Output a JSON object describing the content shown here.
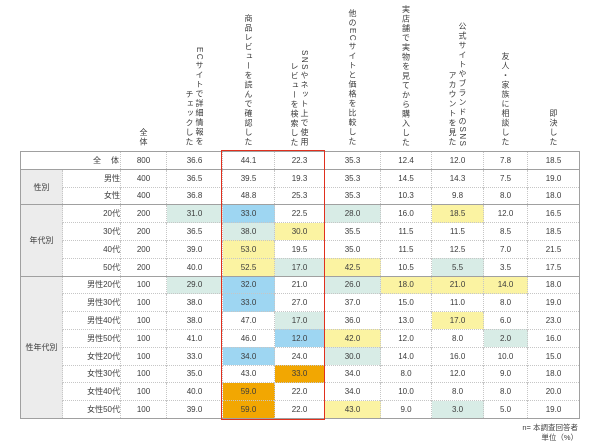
{
  "colors": {
    "teal": "#d8ece6",
    "blue": "#9ed6f2",
    "yellow": "#fbf3a2",
    "orange": "#f2a702",
    "frame_red": "#e0301e",
    "group_bg": "#ececec"
  },
  "footer": {
    "note1": "n= 本調査回答者",
    "note2": "単位（%）"
  },
  "chart_data": {
    "type": "table",
    "unit": "%",
    "columns": [
      {
        "id": "n",
        "lines": [
          "全体"
        ]
      },
      {
        "id": "ec-site-detail-check",
        "lines": [
          "ECサイトで詳細情報を",
          "チェックした"
        ]
      },
      {
        "id": "product-review-read",
        "lines": [
          "商品レビューを読んで確認した"
        ]
      },
      {
        "id": "sns-review-search",
        "lines": [
          "SNSやネット上で使用",
          "レビューを検索した"
        ]
      },
      {
        "id": "other-ec-price-compare",
        "lines": [
          "他のECサイトと価格を比較した"
        ]
      },
      {
        "id": "real-store-see-buy",
        "lines": [
          "実店舗で実物を見てから購入した"
        ]
      },
      {
        "id": "official-site-sns-account",
        "lines": [
          "公式サイトやブランドのSNS",
          "アカウントを見た"
        ]
      },
      {
        "id": "friends-family-consult",
        "lines": [
          "友人・家族に相談した"
        ]
      },
      {
        "id": "immediate-decision",
        "lines": [
          "即決した"
        ]
      }
    ],
    "groups": [
      {
        "label": "性別",
        "span": 2
      },
      {
        "label": "年代別",
        "span": 4
      },
      {
        "label": "性年代別",
        "span": 8
      }
    ],
    "rows": [
      {
        "label": "全　体",
        "is_total": true,
        "values": [
          "800",
          "36.6",
          "44.1",
          "22.3",
          "35.3",
          "12.4",
          "12.0",
          "7.8",
          "18.5"
        ],
        "highlights": [
          "",
          "",
          "",
          "",
          "",
          "",
          "",
          "",
          ""
        ]
      },
      {
        "label": "男性",
        "values": [
          "400",
          "36.5",
          "39.5",
          "19.3",
          "35.3",
          "14.5",
          "14.3",
          "7.5",
          "19.0"
        ],
        "highlights": [
          "",
          "",
          "",
          "",
          "",
          "",
          "",
          "",
          ""
        ]
      },
      {
        "label": "女性",
        "values": [
          "400",
          "36.8",
          "48.8",
          "25.3",
          "35.3",
          "10.3",
          "9.8",
          "8.0",
          "18.0"
        ],
        "highlights": [
          "",
          "",
          "",
          "",
          "",
          "",
          "",
          "",
          ""
        ]
      },
      {
        "label": "20代",
        "values": [
          "200",
          "31.0",
          "33.0",
          "22.5",
          "28.0",
          "16.0",
          "18.5",
          "12.0",
          "16.5"
        ],
        "highlights": [
          "",
          "teal",
          "blue",
          "",
          "teal",
          "",
          "yellow",
          "",
          ""
        ]
      },
      {
        "label": "30代",
        "values": [
          "200",
          "36.5",
          "38.0",
          "30.0",
          "35.5",
          "11.5",
          "11.5",
          "8.5",
          "18.5"
        ],
        "highlights": [
          "",
          "",
          "teal",
          "yellow",
          "",
          "",
          "",
          "",
          ""
        ]
      },
      {
        "label": "40代",
        "values": [
          "200",
          "39.0",
          "53.0",
          "19.5",
          "35.0",
          "11.5",
          "12.5",
          "7.0",
          "21.5"
        ],
        "highlights": [
          "",
          "",
          "yellow",
          "",
          "",
          "",
          "",
          "",
          ""
        ]
      },
      {
        "label": "50代",
        "values": [
          "200",
          "40.0",
          "52.5",
          "17.0",
          "42.5",
          "10.5",
          "5.5",
          "3.5",
          "17.5"
        ],
        "highlights": [
          "",
          "",
          "yellow",
          "teal",
          "yellow",
          "",
          "teal",
          "",
          ""
        ]
      },
      {
        "label": "男性20代",
        "values": [
          "100",
          "29.0",
          "32.0",
          "21.0",
          "26.0",
          "18.0",
          "21.0",
          "14.0",
          "18.0"
        ],
        "highlights": [
          "",
          "teal",
          "blue",
          "",
          "teal",
          "yellow",
          "yellow",
          "yellow",
          ""
        ]
      },
      {
        "label": "男性30代",
        "values": [
          "100",
          "38.0",
          "33.0",
          "27.0",
          "37.0",
          "15.0",
          "11.0",
          "8.0",
          "19.0"
        ],
        "highlights": [
          "",
          "",
          "blue",
          "",
          "",
          "",
          "",
          "",
          ""
        ]
      },
      {
        "label": "男性40代",
        "values": [
          "100",
          "38.0",
          "47.0",
          "17.0",
          "36.0",
          "13.0",
          "17.0",
          "6.0",
          "23.0"
        ],
        "highlights": [
          "",
          "",
          "",
          "teal",
          "",
          "",
          "yellow",
          "",
          ""
        ]
      },
      {
        "label": "男性50代",
        "values": [
          "100",
          "41.0",
          "46.0",
          "12.0",
          "42.0",
          "12.0",
          "8.0",
          "2.0",
          "16.0"
        ],
        "highlights": [
          "",
          "",
          "",
          "blue",
          "yellow",
          "",
          "",
          "teal",
          ""
        ]
      },
      {
        "label": "女性20代",
        "values": [
          "100",
          "33.0",
          "34.0",
          "24.0",
          "30.0",
          "14.0",
          "16.0",
          "10.0",
          "15.0"
        ],
        "highlights": [
          "",
          "",
          "blue",
          "",
          "teal",
          "",
          "",
          "",
          ""
        ]
      },
      {
        "label": "女性30代",
        "values": [
          "100",
          "35.0",
          "43.0",
          "33.0",
          "34.0",
          "8.0",
          "12.0",
          "9.0",
          "18.0"
        ],
        "highlights": [
          "",
          "",
          "",
          "orange",
          "",
          "",
          "",
          "",
          ""
        ]
      },
      {
        "label": "女性40代",
        "values": [
          "100",
          "40.0",
          "59.0",
          "22.0",
          "34.0",
          "10.0",
          "8.0",
          "8.0",
          "20.0"
        ],
        "highlights": [
          "",
          "",
          "orange",
          "",
          "",
          "",
          "",
          "",
          ""
        ]
      },
      {
        "label": "女性50代",
        "values": [
          "100",
          "39.0",
          "59.0",
          "22.0",
          "43.0",
          "9.0",
          "3.0",
          "5.0",
          "19.0"
        ],
        "highlights": [
          "",
          "",
          "orange",
          "",
          "yellow",
          "",
          "teal",
          "",
          ""
        ]
      }
    ],
    "emphasized_columns": [
      "product-review-read",
      "sns-review-search"
    ]
  }
}
